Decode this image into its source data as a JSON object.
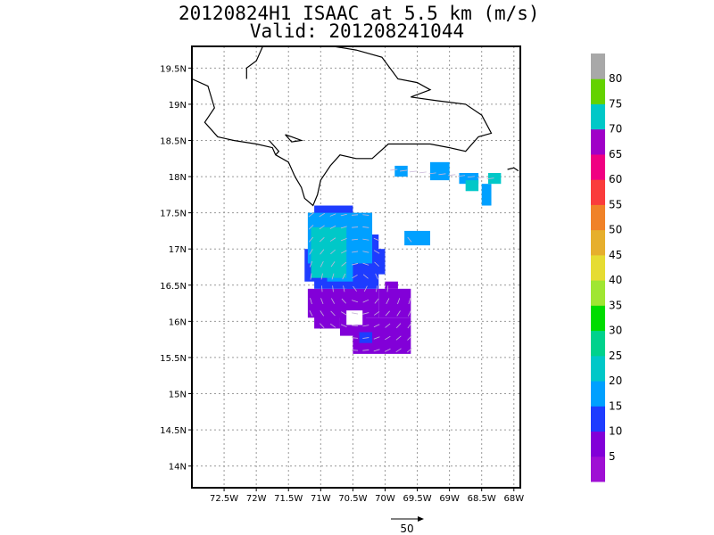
{
  "title": {
    "line1": "20120824H1 ISAAC at 5.5 km (m/s)",
    "line2": "Valid: 201208241044"
  },
  "map": {
    "lon_range": [
      -73.0,
      -67.9
    ],
    "lat_range": [
      13.7,
      19.8
    ],
    "lon_ticks": [
      {
        "value": -72.5,
        "label": "72.5W"
      },
      {
        "value": -72.0,
        "label": "72W"
      },
      {
        "value": -71.5,
        "label": "71.5W"
      },
      {
        "value": -71.0,
        "label": "71W"
      },
      {
        "value": -70.5,
        "label": "70.5W"
      },
      {
        "value": -70.0,
        "label": "70W"
      },
      {
        "value": -69.5,
        "label": "69.5W"
      },
      {
        "value": -69.0,
        "label": "69W"
      },
      {
        "value": -68.5,
        "label": "68.5W"
      },
      {
        "value": -68.0,
        "label": "68W"
      }
    ],
    "lat_ticks": [
      {
        "value": 19.5,
        "label": "19.5N"
      },
      {
        "value": 19.0,
        "label": "19N"
      },
      {
        "value": 18.5,
        "label": "18.5N"
      },
      {
        "value": 18.0,
        "label": "18N"
      },
      {
        "value": 17.5,
        "label": "17.5N"
      },
      {
        "value": 17.0,
        "label": "17N"
      },
      {
        "value": 16.5,
        "label": "16.5N"
      },
      {
        "value": 16.0,
        "label": "16N"
      },
      {
        "value": 15.5,
        "label": "15.5N"
      },
      {
        "value": 15.0,
        "label": "15N"
      },
      {
        "value": 14.5,
        "label": "14.5N"
      },
      {
        "value": 14.0,
        "label": "14N"
      }
    ],
    "grid": true,
    "coastline": [
      [
        [
          -73.0,
          19.35
        ],
        [
          -72.75,
          19.25
        ],
        [
          -72.65,
          18.95
        ],
        [
          -72.8,
          18.75
        ],
        [
          -72.6,
          18.55
        ],
        [
          -72.35,
          18.5
        ],
        [
          -72.0,
          18.45
        ],
        [
          -71.75,
          18.4
        ],
        [
          -71.7,
          18.3
        ],
        [
          -71.5,
          18.2
        ],
        [
          -71.4,
          18.0
        ],
        [
          -71.3,
          17.85
        ],
        [
          -71.25,
          17.7
        ],
        [
          -71.12,
          17.6
        ],
        [
          -71.05,
          17.75
        ],
        [
          -71.0,
          17.95
        ],
        [
          -70.85,
          18.15
        ],
        [
          -70.7,
          18.3
        ],
        [
          -70.45,
          18.25
        ],
        [
          -70.2,
          18.25
        ],
        [
          -69.95,
          18.45
        ],
        [
          -69.6,
          18.45
        ],
        [
          -69.3,
          18.45
        ],
        [
          -69.0,
          18.4
        ],
        [
          -68.75,
          18.35
        ],
        [
          -68.55,
          18.55
        ],
        [
          -68.35,
          18.6
        ],
        [
          -68.5,
          18.85
        ],
        [
          -68.75,
          19.0
        ],
        [
          -69.2,
          19.05
        ],
        [
          -69.6,
          19.1
        ],
        [
          -69.3,
          19.2
        ],
        [
          -69.5,
          19.3
        ],
        [
          -69.8,
          19.35
        ],
        [
          -70.05,
          19.65
        ],
        [
          -70.45,
          19.75
        ],
        [
          -70.8,
          19.8
        ]
      ],
      [
        [
          -71.9,
          19.8
        ],
        [
          -72.0,
          19.6
        ],
        [
          -72.15,
          19.5
        ],
        [
          -72.15,
          19.35
        ]
      ],
      [
        [
          -71.55,
          18.58
        ],
        [
          -71.45,
          18.55
        ],
        [
          -71.3,
          18.5
        ],
        [
          -71.45,
          18.48
        ],
        [
          -71.55,
          18.58
        ]
      ],
      [
        [
          -71.8,
          18.5
        ],
        [
          -71.65,
          18.35
        ],
        [
          -71.7,
          18.3
        ]
      ],
      [
        [
          -68.1,
          18.1
        ],
        [
          -68.0,
          18.12
        ],
        [
          -67.93,
          18.08
        ]
      ]
    ],
    "colorbar": {
      "levels": [
        "5",
        "10",
        "15",
        "20",
        "25",
        "30",
        "35",
        "40",
        "45",
        "50",
        "55",
        "60",
        "65",
        "70",
        "75",
        "80"
      ],
      "colors": [
        "#9f0fd4",
        "#8200d8",
        "#1e3cff",
        "#00a0ff",
        "#00c8c8",
        "#00d28c",
        "#00dc00",
        "#a0e632",
        "#e6dc32",
        "#e6af2d",
        "#f08228",
        "#fa3c3c",
        "#f00082",
        "#a000c8",
        "#00c8c8",
        "#64d200",
        "#a8a8a8"
      ]
    },
    "reference_vector": {
      "value": "50"
    }
  }
}
